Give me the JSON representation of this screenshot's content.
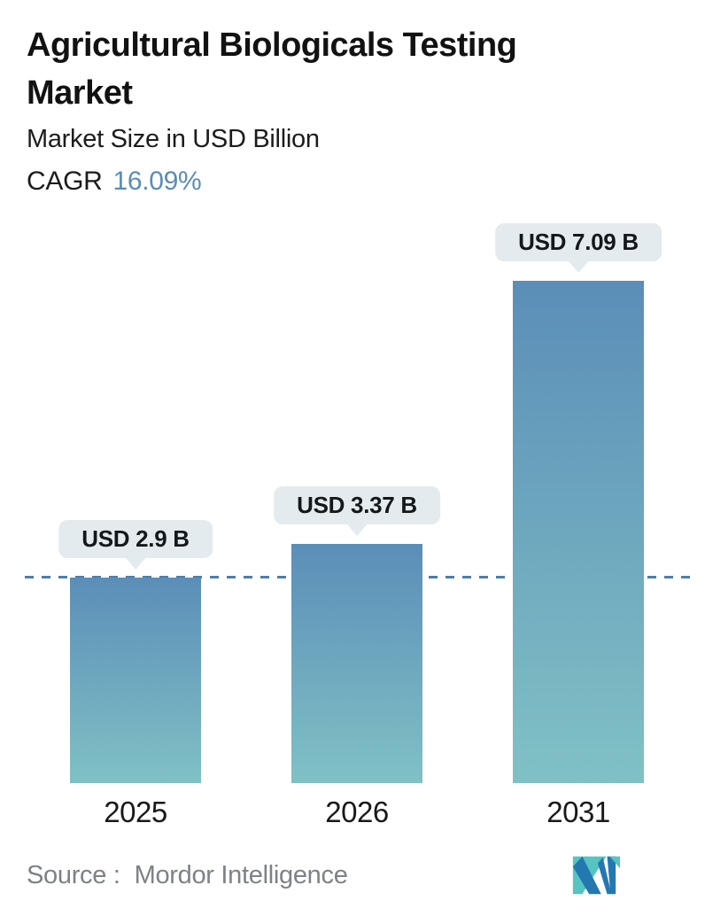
{
  "header": {
    "title": "Agricultural Biologicals Testing Market",
    "subtitle": "Market Size in USD Billion",
    "cagr_label": "CAGR",
    "cagr_value": "16.09%"
  },
  "chart_data": {
    "type": "bar",
    "title": "Agricultural Biologicals Testing Market",
    "subtitle": "Market Size in USD Billion",
    "cagr": "16.09%",
    "unit": "USD Billion",
    "categories": [
      "2025",
      "2026",
      "2031"
    ],
    "values": [
      2.9,
      3.37,
      7.09
    ],
    "value_labels": [
      "USD 2.9 B",
      "USD 3.37 B",
      "USD 7.09 B"
    ],
    "ylim": [
      0,
      7.5
    ],
    "grid": false,
    "legend": false,
    "annotations": [
      "dashed horizontal reference line at the 2025 value level"
    ],
    "colors": {
      "bar_gradient_top": "#5b8eb8",
      "bar_gradient_bottom": "#80c1c5",
      "value_bubble_bg": "#e4ebee",
      "dashed_line": "#4f7da8",
      "cagr_accent": "#5b8cb4"
    }
  },
  "footer": {
    "source_label": "Source :",
    "source_value": "Mordor Intelligence",
    "logo_name": "mordor-intelligence-logo",
    "logo_colors": {
      "blue": "#2478b0",
      "teal": "#56c4c1"
    }
  }
}
